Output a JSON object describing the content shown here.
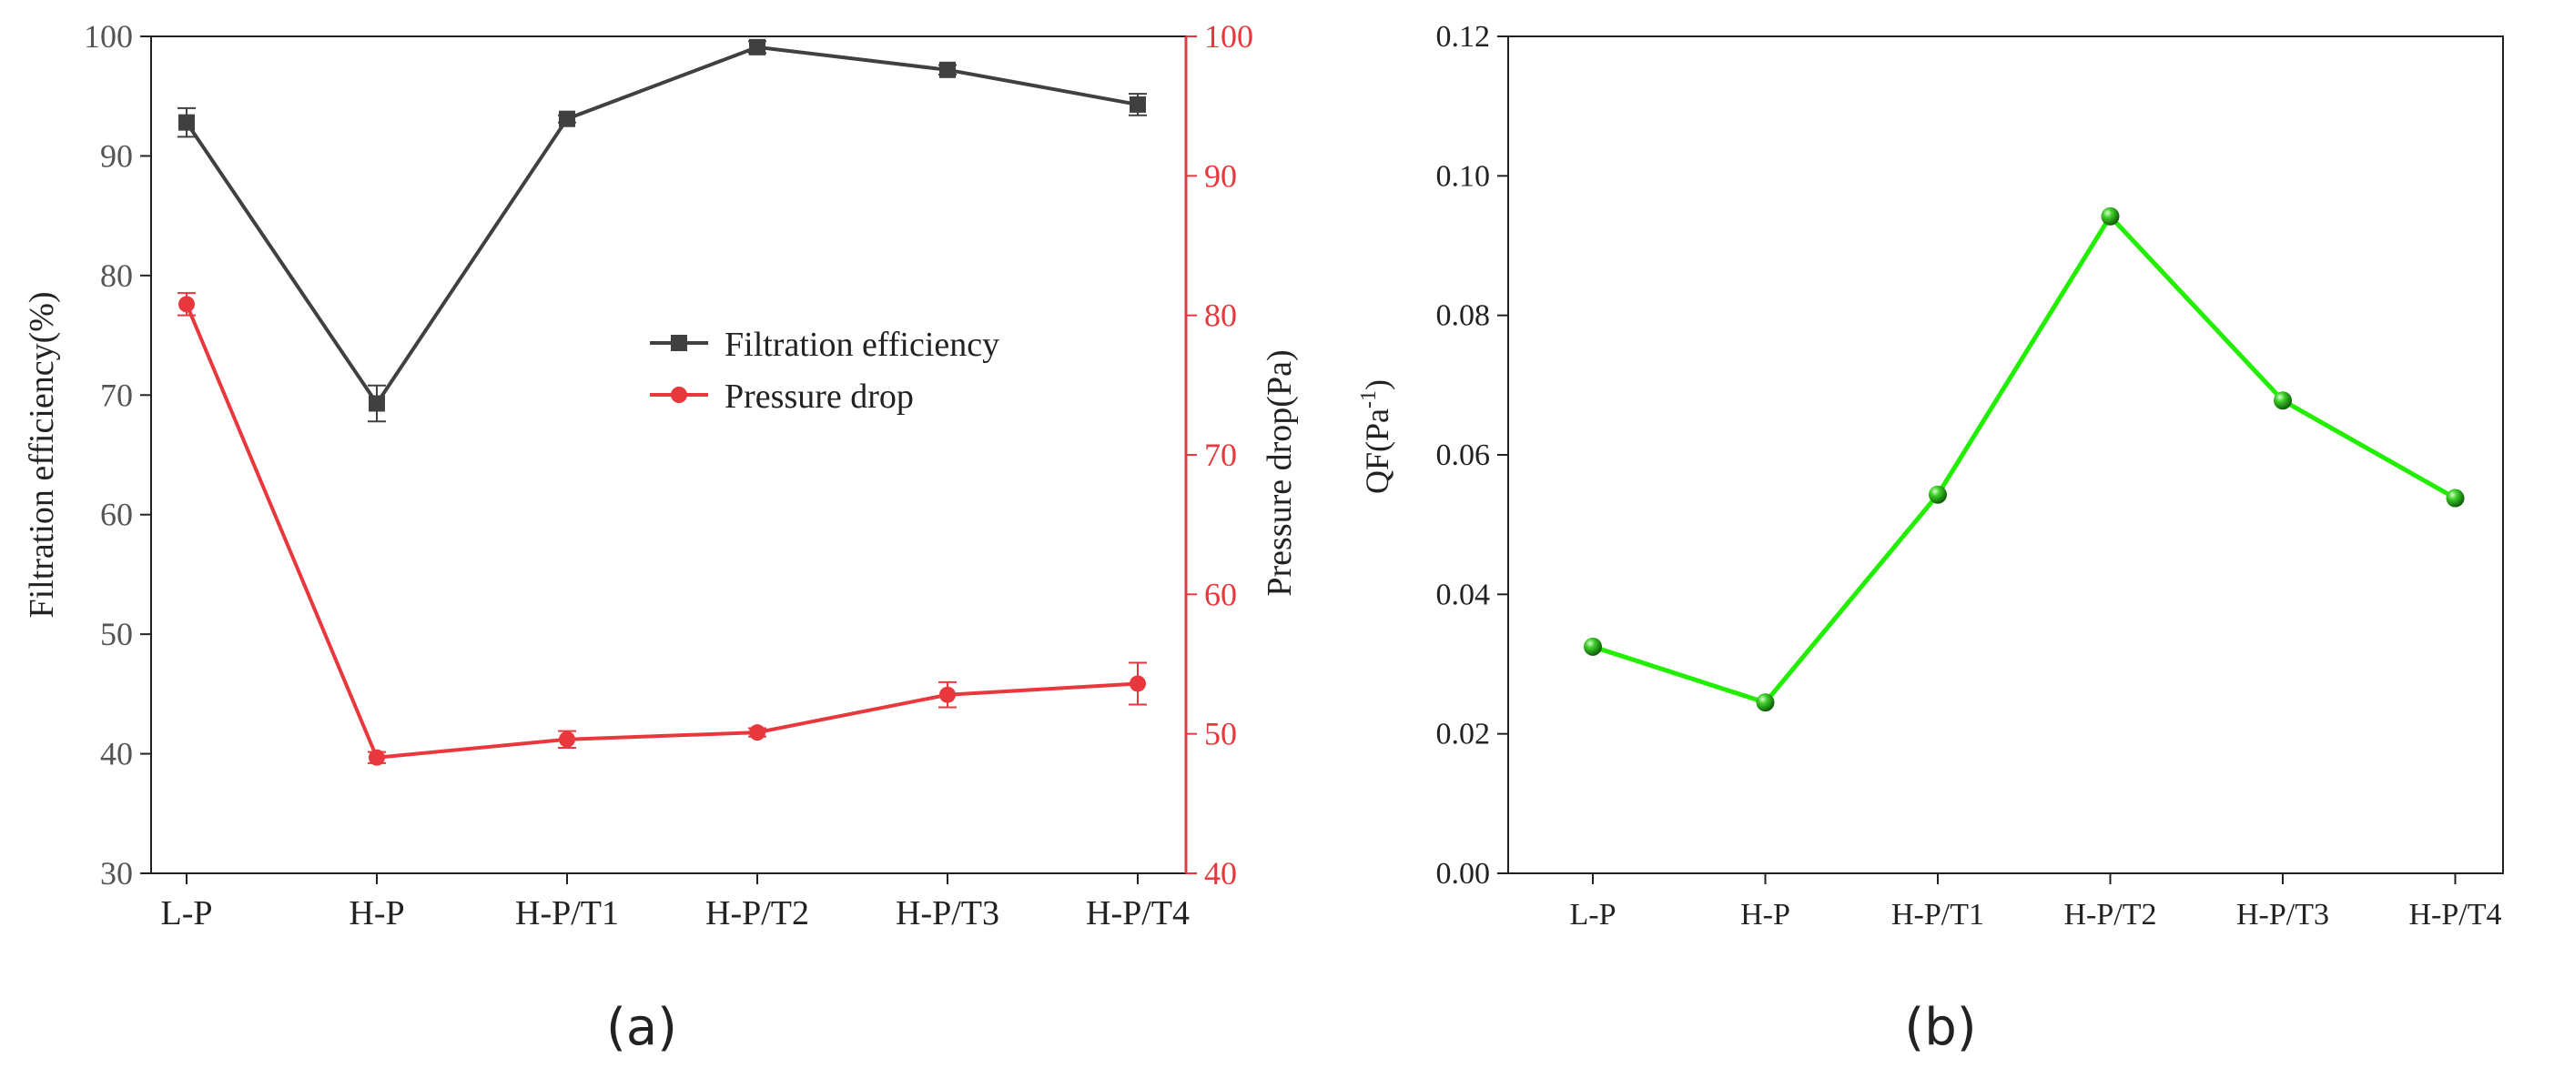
{
  "chart_data": [
    {
      "type": "line",
      "panel_label": "(a)",
      "categories": [
        "L-P",
        "H-P",
        "H-P/T1",
        "H-P/T2",
        "H-P/T3",
        "H-P/T4"
      ],
      "ylabel": "Filtration efficiency(%)",
      "y2label": "Pressure drop(Pa)",
      "ylim": [
        30,
        100
      ],
      "y2lim": [
        40,
        100
      ],
      "yticks": [
        "30",
        "40",
        "50",
        "60",
        "70",
        "80",
        "90",
        "100"
      ],
      "y2ticks": [
        "40",
        "50",
        "60",
        "70",
        "80",
        "90",
        "100"
      ],
      "legend_position": "center-right",
      "series": [
        {
          "name": "Filtration efficiency",
          "axis": "left",
          "color": "#404040",
          "marker": "square",
          "values": [
            92.8,
            69.3,
            93.1,
            99.1,
            97.2,
            94.3
          ],
          "errors": [
            1.2,
            1.5,
            0.3,
            0.5,
            0.4,
            0.9
          ]
        },
        {
          "name": "Pressure drop",
          "axis": "right",
          "color": "#e8383d",
          "marker": "circle",
          "values": [
            80.8,
            48.3,
            49.6,
            50.1,
            52.8,
            53.6
          ],
          "errors": [
            0.8,
            0.4,
            0.6,
            0.3,
            0.9,
            1.5
          ]
        }
      ]
    },
    {
      "type": "line",
      "panel_label": "(b)",
      "categories": [
        "L-P",
        "H-P",
        "H-P/T1",
        "H-P/T2",
        "H-P/T3",
        "H-P/T4"
      ],
      "ylabel_main": "QF(Pa",
      "ylabel_sup": "-1",
      "ylabel_close": ")",
      "ylim": [
        0,
        0.12
      ],
      "yticks": [
        "0.00",
        "0.02",
        "0.04",
        "0.06",
        "0.08",
        "0.10",
        "0.12"
      ],
      "series": [
        {
          "name": "QF",
          "color": "#22ee00",
          "marker": "sphere",
          "values": [
            0.0325,
            0.0245,
            0.0543,
            0.0942,
            0.0678,
            0.0538
          ]
        }
      ]
    }
  ]
}
